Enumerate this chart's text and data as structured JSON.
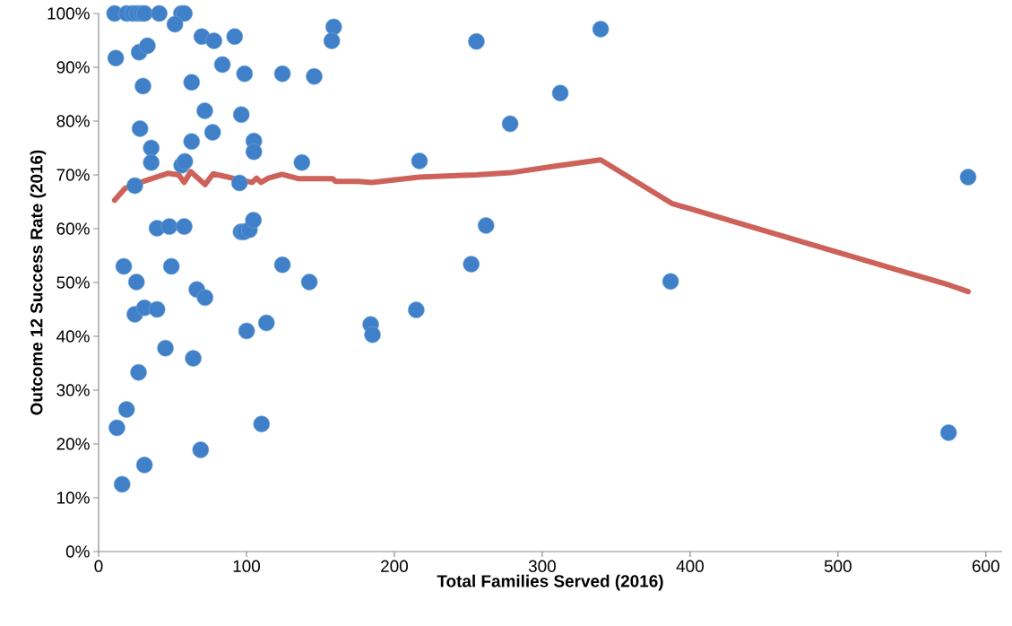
{
  "chart_data": {
    "type": "scatter",
    "xlabel": "Total Families Served (2016)",
    "ylabel": "Outcome 12 Success Rate (2016)",
    "xlim": [
      0,
      611
    ],
    "xticks": [
      0,
      100,
      200,
      300,
      400,
      500,
      600
    ],
    "ylim": [
      0,
      100
    ],
    "yticks": [
      {
        "value": 0,
        "label": "0%"
      },
      {
        "value": 10,
        "label": "10%"
      },
      {
        "value": 20,
        "label": "20%"
      },
      {
        "value": 30,
        "label": "30%"
      },
      {
        "value": 40,
        "label": "40%"
      },
      {
        "value": 50,
        "label": "50%"
      },
      {
        "value": 60,
        "label": "60%"
      },
      {
        "value": 70,
        "label": "70%"
      },
      {
        "value": 80,
        "label": "80%"
      },
      {
        "value": 90,
        "label": "90%"
      },
      {
        "value": 100,
        "label": "100%"
      }
    ],
    "series": [
      {
        "marker": "circle",
        "color": "#3f80c8",
        "x": [
          10.8,
          19,
          23,
          26,
          29,
          31,
          41,
          56,
          58,
          51.6,
          69.8,
          78,
          92,
          159,
          157.7,
          11.6,
          27.4,
          33,
          83.7,
          98.7,
          124.3,
          145.8,
          30,
          62.9,
          71.8,
          96.5,
          28,
          35.6,
          77.1,
          62.9,
          105,
          105,
          35.6,
          56.2,
          58.3,
          137.5,
          24.5,
          95.3,
          39.5,
          47.8,
          57.9,
          96.3,
          98.3,
          102,
          104.7,
          17,
          49.2,
          124.3,
          25.6,
          142.5,
          66.4,
          72,
          24.5,
          31,
          39.5,
          100.1,
          113.5,
          45.2,
          64,
          27,
          18.9,
          12.4,
          110.2,
          69,
          31,
          15.9,
          255.5,
          339.5,
          312.2,
          278.3,
          217,
          262,
          252,
          386.8,
          214.8,
          184,
          185.2,
          588,
          574.8
        ],
        "values": [
          100,
          100,
          100,
          100,
          100,
          100,
          100,
          100,
          100,
          98,
          95.7,
          94.9,
          95.7,
          97.5,
          94.9,
          91.7,
          92.8,
          94,
          90.5,
          88.8,
          88.8,
          88.3,
          86.5,
          87.2,
          81.9,
          81.2,
          78.6,
          75,
          77.9,
          76.2,
          76.3,
          74.3,
          72.3,
          71.8,
          72.5,
          72.3,
          68,
          68.5,
          60.1,
          60.4,
          60.4,
          59.4,
          59.4,
          59.8,
          61.6,
          53,
          53,
          53.3,
          50.1,
          50.1,
          48.7,
          47.2,
          44.1,
          45.3,
          45,
          41,
          42.5,
          37.8,
          35.9,
          33.3,
          26.4,
          23,
          23.7,
          18.9,
          16.1,
          12.5,
          94.8,
          97.1,
          85.2,
          79.5,
          72.6,
          60.6,
          53.4,
          50.2,
          44.9,
          42.2,
          40.3,
          69.6,
          22.1
        ]
      },
      {
        "type": "line",
        "marker": "none",
        "color": "#cd625a",
        "x": [
          10.8,
          17.9,
          25,
          36,
          47.2,
          54.2,
          57.9,
          62.3,
          72,
          77.5,
          90.6,
          103.8,
          106.8,
          109.8,
          114.8,
          124,
          135,
          158.3,
          160.3,
          175.5,
          184.5,
          216.8,
          255.3,
          278.5,
          310.8,
          339.5,
          387.6,
          575.5,
          588
        ],
        "values": [
          65.3,
          67.5,
          68.3,
          69.3,
          70.3,
          70,
          68.6,
          70.6,
          68.2,
          70.2,
          69.4,
          68.6,
          69.4,
          68.6,
          69.4,
          70.1,
          69.3,
          69.3,
          68.8,
          68.8,
          68.6,
          69.6,
          70,
          70.4,
          71.7,
          72.8,
          64.7,
          49.5,
          48.3
        ]
      }
    ]
  }
}
